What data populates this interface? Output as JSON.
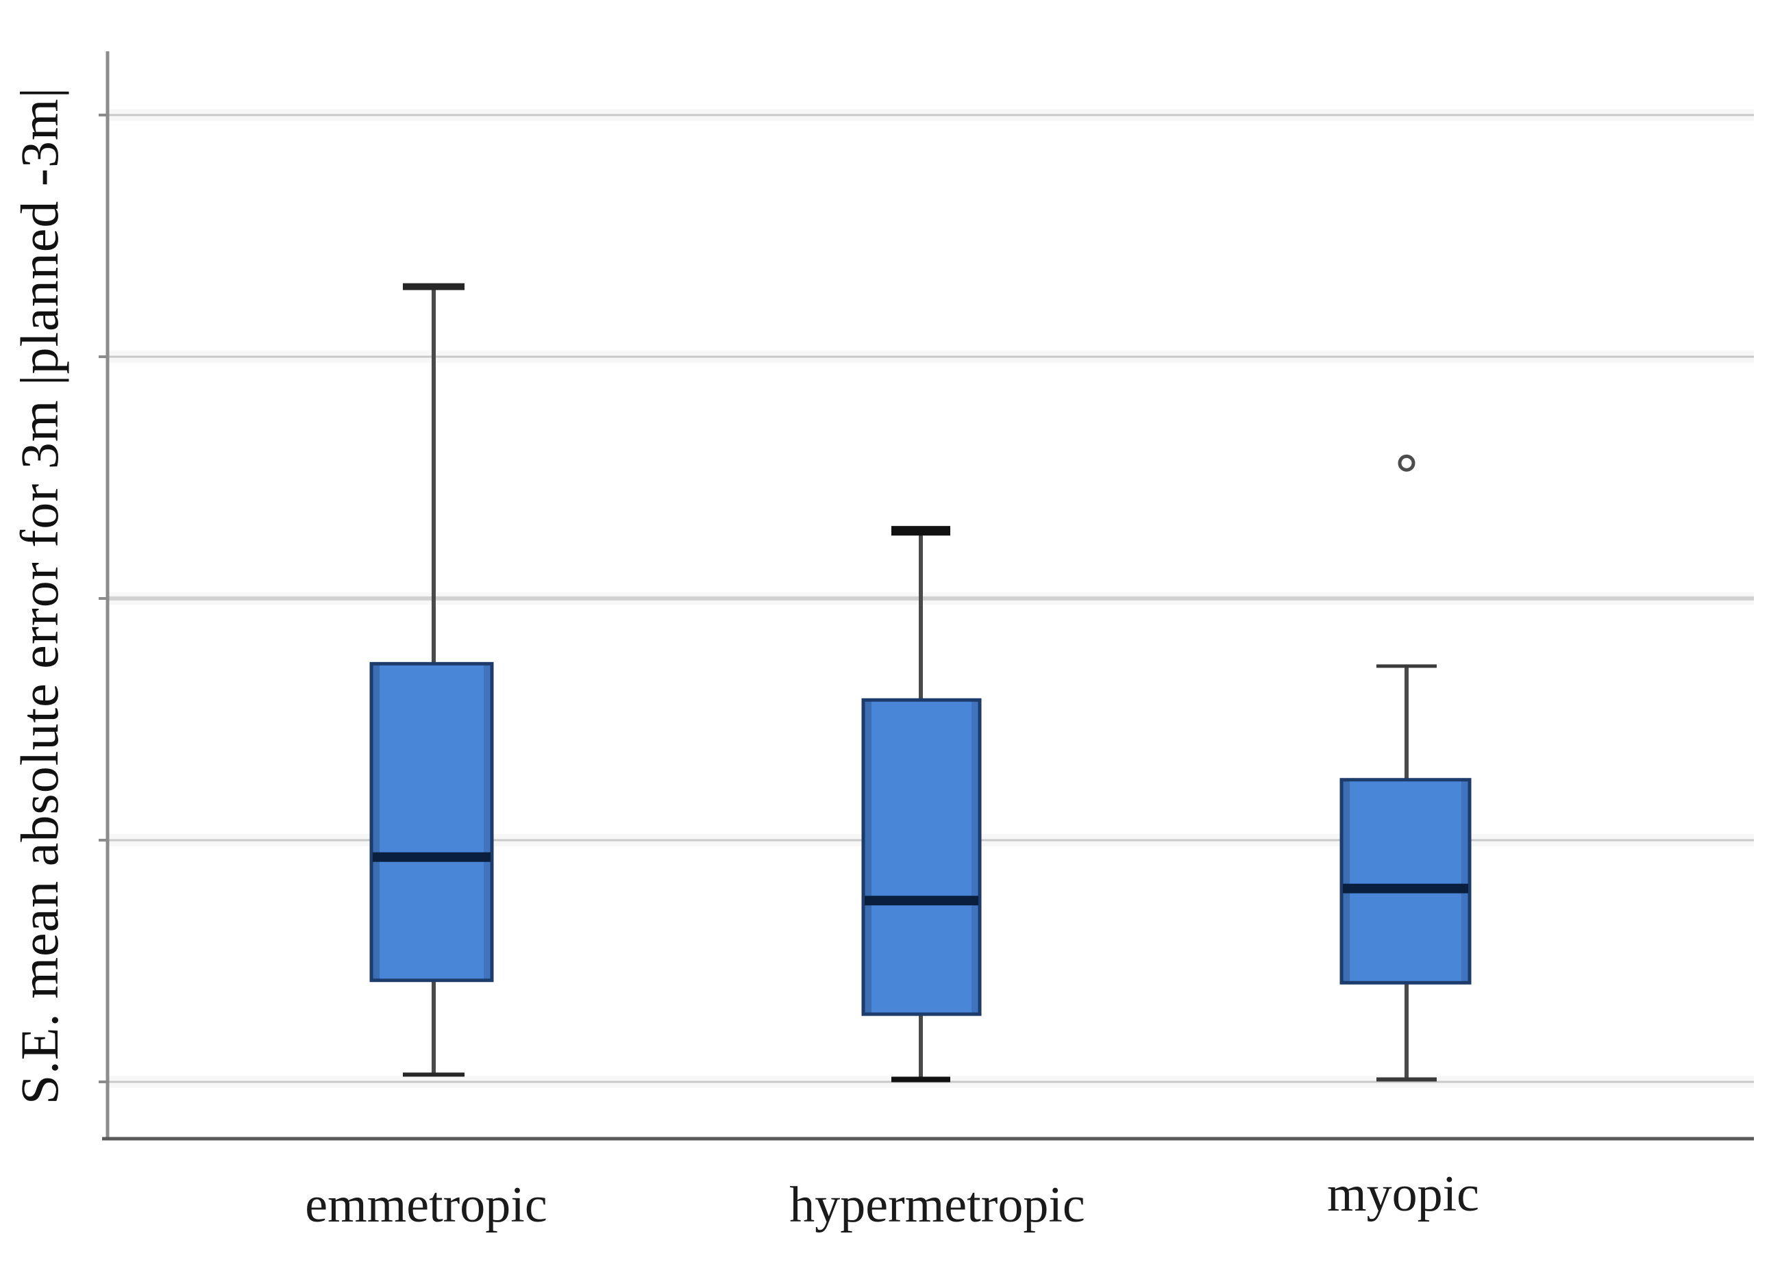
{
  "figure": {
    "background": "#ffffff",
    "note_axis_numbers": ""
  },
  "chart_data": {
    "type": "box",
    "title": "",
    "xlabel": "",
    "ylabel": "S.E. mean absolute error for 3m |planned -3m|",
    "categories": [
      "emmetropic",
      "hypermetropic",
      "myopic"
    ],
    "y_axis": {
      "numeric_tick_labels_visible": false,
      "unit": "gridline-intervals (no numeric scale printed on axis)",
      "gridline_values": [
        0,
        1,
        2,
        3,
        4
      ],
      "ylim": [
        -0.24,
        4.26
      ],
      "grid": "horizontal"
    },
    "legend": "none",
    "series": [
      {
        "name": "emmetropic",
        "whisker_low": 0.03,
        "q1": 0.42,
        "median": 0.93,
        "q3": 1.73,
        "whisker_high": 3.29,
        "outliers": []
      },
      {
        "name": "hypermetropic",
        "whisker_low": 0.01,
        "q1": 0.28,
        "median": 0.75,
        "q3": 1.58,
        "whisker_high": 2.28,
        "outliers": []
      },
      {
        "name": "myopic",
        "whisker_low": 0.01,
        "q1": 0.41,
        "median": 0.8,
        "q3": 1.25,
        "whisker_high": 1.72,
        "outliers": [
          2.56
        ]
      }
    ],
    "colors": {
      "box_fill": "#4a86d8",
      "box_border": "#1d3c6b",
      "median_line": "#0a1f3e",
      "whisker": "#4a4a4a",
      "cap_emmetropic": "#262626",
      "cap_hypermetropic": "#111111",
      "cap_myopic": "#3a3a3a",
      "outlier_ring": "#4d4d4d",
      "gridline": "#c9c9c9",
      "gridline_major": "#d2d2d2",
      "y_axis_line": "#8c8c8c",
      "x_axis_line": "#595959",
      "label_text": "#1a1a1a"
    }
  }
}
